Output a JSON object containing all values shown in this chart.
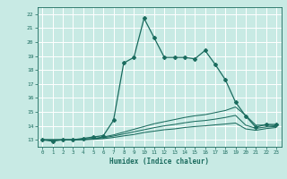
{
  "title": "",
  "xlabel": "Humidex (Indice chaleur)",
  "ylabel": "",
  "background_color": "#c8eae4",
  "grid_color": "#ffffff",
  "line_color": "#1a6b5e",
  "xlim": [
    -0.5,
    23.5
  ],
  "ylim": [
    12.5,
    22.5
  ],
  "yticks": [
    13,
    14,
    15,
    16,
    17,
    18,
    19,
    20,
    21,
    22
  ],
  "xticks": [
    0,
    1,
    2,
    3,
    4,
    5,
    6,
    7,
    8,
    9,
    10,
    11,
    12,
    13,
    14,
    15,
    16,
    17,
    18,
    19,
    20,
    21,
    22,
    23
  ],
  "series": [
    {
      "x": [
        0,
        1,
        2,
        3,
        4,
        5,
        6,
        7,
        8,
        9,
        10,
        11,
        12,
        13,
        14,
        15,
        16,
        17,
        18,
        19,
        20,
        21,
        22,
        23
      ],
      "y": [
        13,
        12.9,
        13,
        13,
        13.1,
        13.2,
        13.3,
        14.4,
        18.5,
        18.9,
        21.7,
        20.3,
        18.9,
        18.9,
        18.9,
        18.8,
        19.4,
        18.4,
        17.3,
        15.7,
        14.7,
        13.9,
        14.1,
        14.1
      ],
      "marker": true
    },
    {
      "x": [
        0,
        1,
        2,
        3,
        4,
        5,
        6,
        7,
        8,
        9,
        10,
        11,
        12,
        13,
        14,
        15,
        16,
        17,
        18,
        19,
        20,
        21,
        22,
        23
      ],
      "y": [
        13,
        13,
        13,
        13,
        13.05,
        13.1,
        13.2,
        13.35,
        13.55,
        13.75,
        13.95,
        14.15,
        14.3,
        14.45,
        14.6,
        14.72,
        14.8,
        14.95,
        15.1,
        15.35,
        14.75,
        14.05,
        14.05,
        14.0
      ],
      "marker": false
    },
    {
      "x": [
        0,
        1,
        2,
        3,
        4,
        5,
        6,
        7,
        8,
        9,
        10,
        11,
        12,
        13,
        14,
        15,
        16,
        17,
        18,
        19,
        20,
        21,
        22,
        23
      ],
      "y": [
        13,
        13,
        13,
        13,
        13.02,
        13.07,
        13.15,
        13.27,
        13.42,
        13.57,
        13.72,
        13.87,
        14.0,
        14.1,
        14.22,
        14.32,
        14.38,
        14.48,
        14.6,
        14.75,
        14.05,
        13.82,
        13.92,
        13.95
      ],
      "marker": false
    },
    {
      "x": [
        0,
        1,
        2,
        3,
        4,
        5,
        6,
        7,
        8,
        9,
        10,
        11,
        12,
        13,
        14,
        15,
        16,
        17,
        18,
        19,
        20,
        21,
        22,
        23
      ],
      "y": [
        13,
        13,
        13,
        13,
        13.0,
        13.03,
        13.08,
        13.17,
        13.28,
        13.38,
        13.52,
        13.62,
        13.72,
        13.78,
        13.88,
        13.95,
        14.0,
        14.07,
        14.13,
        14.2,
        13.78,
        13.68,
        13.8,
        13.88
      ],
      "marker": false
    }
  ]
}
